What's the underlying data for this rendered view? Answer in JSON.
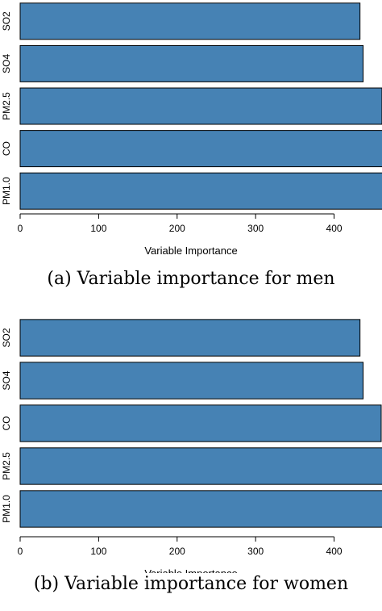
{
  "chart_data": [
    {
      "type": "bar",
      "orientation": "horizontal",
      "categories": [
        "PM1.0",
        "CO",
        "PM2.5",
        "SO4",
        "SO2"
      ],
      "values": [
        465,
        462,
        461,
        437,
        433
      ],
      "xlabel": "Variable Importance",
      "ylabel": "",
      "xticks": [
        0,
        100,
        200,
        300,
        400
      ],
      "xlim": [
        0,
        460
      ],
      "color": "#4682b4",
      "caption": "(a) Variable importance for men"
    },
    {
      "type": "bar",
      "orientation": "horizontal",
      "categories": [
        "PM1.0",
        "PM2.5",
        "CO",
        "SO4",
        "SO2"
      ],
      "values": [
        465,
        462,
        460,
        437,
        433
      ],
      "xlabel": "Variable Importance",
      "ylabel": "",
      "xticks": [
        0,
        100,
        200,
        300,
        400
      ],
      "xlim": [
        0,
        460
      ],
      "color": "#4682b4",
      "caption": "(b) Variable importance for women"
    }
  ]
}
